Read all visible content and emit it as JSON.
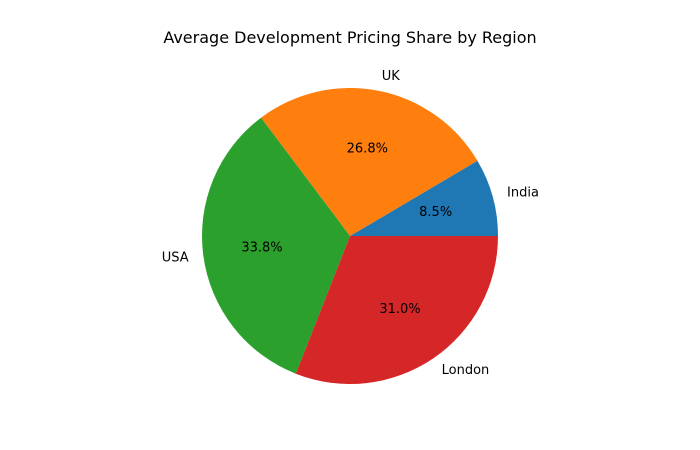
{
  "chart_data": {
    "type": "pie",
    "title": "Average Development Pricing Share by Region",
    "categories": [
      "India",
      "UK",
      "USA",
      "London"
    ],
    "values": [
      8.5,
      26.8,
      33.8,
      31.0
    ],
    "value_labels": [
      "8.5%",
      "26.8%",
      "33.8%",
      "31.0%"
    ],
    "colors": [
      "#1f77b4",
      "#ff7f0e",
      "#2ca02c",
      "#d62728"
    ],
    "start_angle_deg": 0,
    "direction": "counterclockwise",
    "legend": "none"
  }
}
